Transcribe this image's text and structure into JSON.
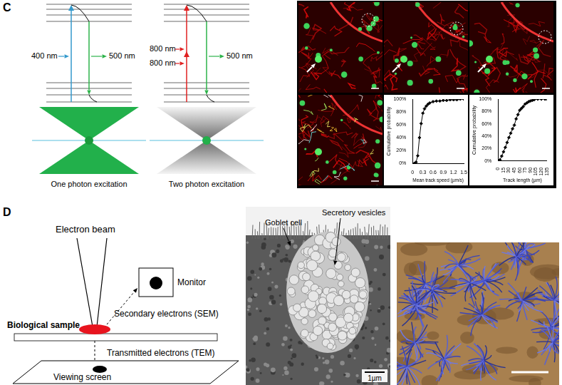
{
  "panel_c": {
    "label": "C",
    "one_photon": {
      "excitation": "400 nm",
      "emission": "500 nm",
      "caption": "One photon excitation"
    },
    "two_photon": {
      "excitation": [
        "800 nm",
        "800 nm"
      ],
      "emission": "500 nm",
      "caption": "Two photon excitation"
    }
  },
  "chart_data": [
    {
      "type": "line",
      "x_label": "Mean track speed (µm/s)",
      "y_label": "Cumulative probability",
      "x": [
        0.05,
        0.1,
        0.15,
        0.2,
        0.25,
        0.3,
        0.35,
        0.4,
        0.45,
        0.5,
        0.6,
        0.7,
        0.8,
        0.9,
        1.0,
        1.1,
        1.2,
        1.3,
        1.4,
        1.5
      ],
      "values": [
        0,
        2,
        12,
        40,
        62,
        78,
        85,
        89,
        92,
        94,
        96,
        97,
        97,
        98,
        98,
        99,
        99,
        99,
        100,
        100
      ],
      "color": "#000000",
      "marker": "diamond",
      "grid": false,
      "xlim": [
        0,
        1.5
      ],
      "xticks": [
        0,
        0.3,
        0.6,
        0.9,
        1.2,
        1.5
      ],
      "ylim": [
        0,
        100
      ],
      "yticks": [
        {
          "value": 0,
          "label": "0%"
        },
        {
          "value": 20,
          "label": "20%"
        },
        {
          "value": 40,
          "label": "40%"
        },
        {
          "value": 60,
          "label": "60%"
        },
        {
          "value": 80,
          "label": "80%"
        },
        {
          "value": 100,
          "label": "100%"
        }
      ]
    },
    {
      "type": "line",
      "x_label": "Track length (µm)",
      "y_label": "Cumulative probability",
      "x": [
        5,
        10,
        15,
        20,
        25,
        30,
        35,
        40,
        45,
        50,
        55,
        60,
        65,
        70,
        75,
        80,
        85,
        90,
        95,
        100,
        110,
        120,
        130,
        135
      ],
      "values": [
        2,
        8,
        15,
        22,
        30,
        38,
        45,
        52,
        58,
        68,
        75,
        82,
        85,
        88,
        92,
        94,
        96,
        97,
        98,
        99,
        100,
        100,
        100,
        100
      ],
      "color": "#000000",
      "marker": "diamond",
      "grid": false,
      "xlim": [
        0,
        135
      ],
      "xticks": [
        0,
        15,
        30,
        45,
        60,
        75,
        90,
        105,
        120,
        135
      ],
      "ylim": [
        0,
        100
      ],
      "yticks": [
        {
          "value": 0,
          "label": "0%"
        },
        {
          "value": 20,
          "label": "20%"
        },
        {
          "value": 40,
          "label": "40%"
        },
        {
          "value": 60,
          "label": "60%"
        },
        {
          "value": 80,
          "label": "80%"
        },
        {
          "value": 100,
          "label": "100%"
        }
      ]
    }
  ],
  "panel_d": {
    "label": "D",
    "diagram": {
      "beam": "Electron beam",
      "monitor": "Monitor",
      "sem": "Secondary electrons (SEM)",
      "sample": "Biological sample",
      "tem": "Transmitted electrons (TEM)",
      "screen": "Viewing screen"
    },
    "tem_image": {
      "labels": [
        "Goblet cell",
        "Secretory vesicles"
      ],
      "scale_bar": "1µm"
    }
  }
}
